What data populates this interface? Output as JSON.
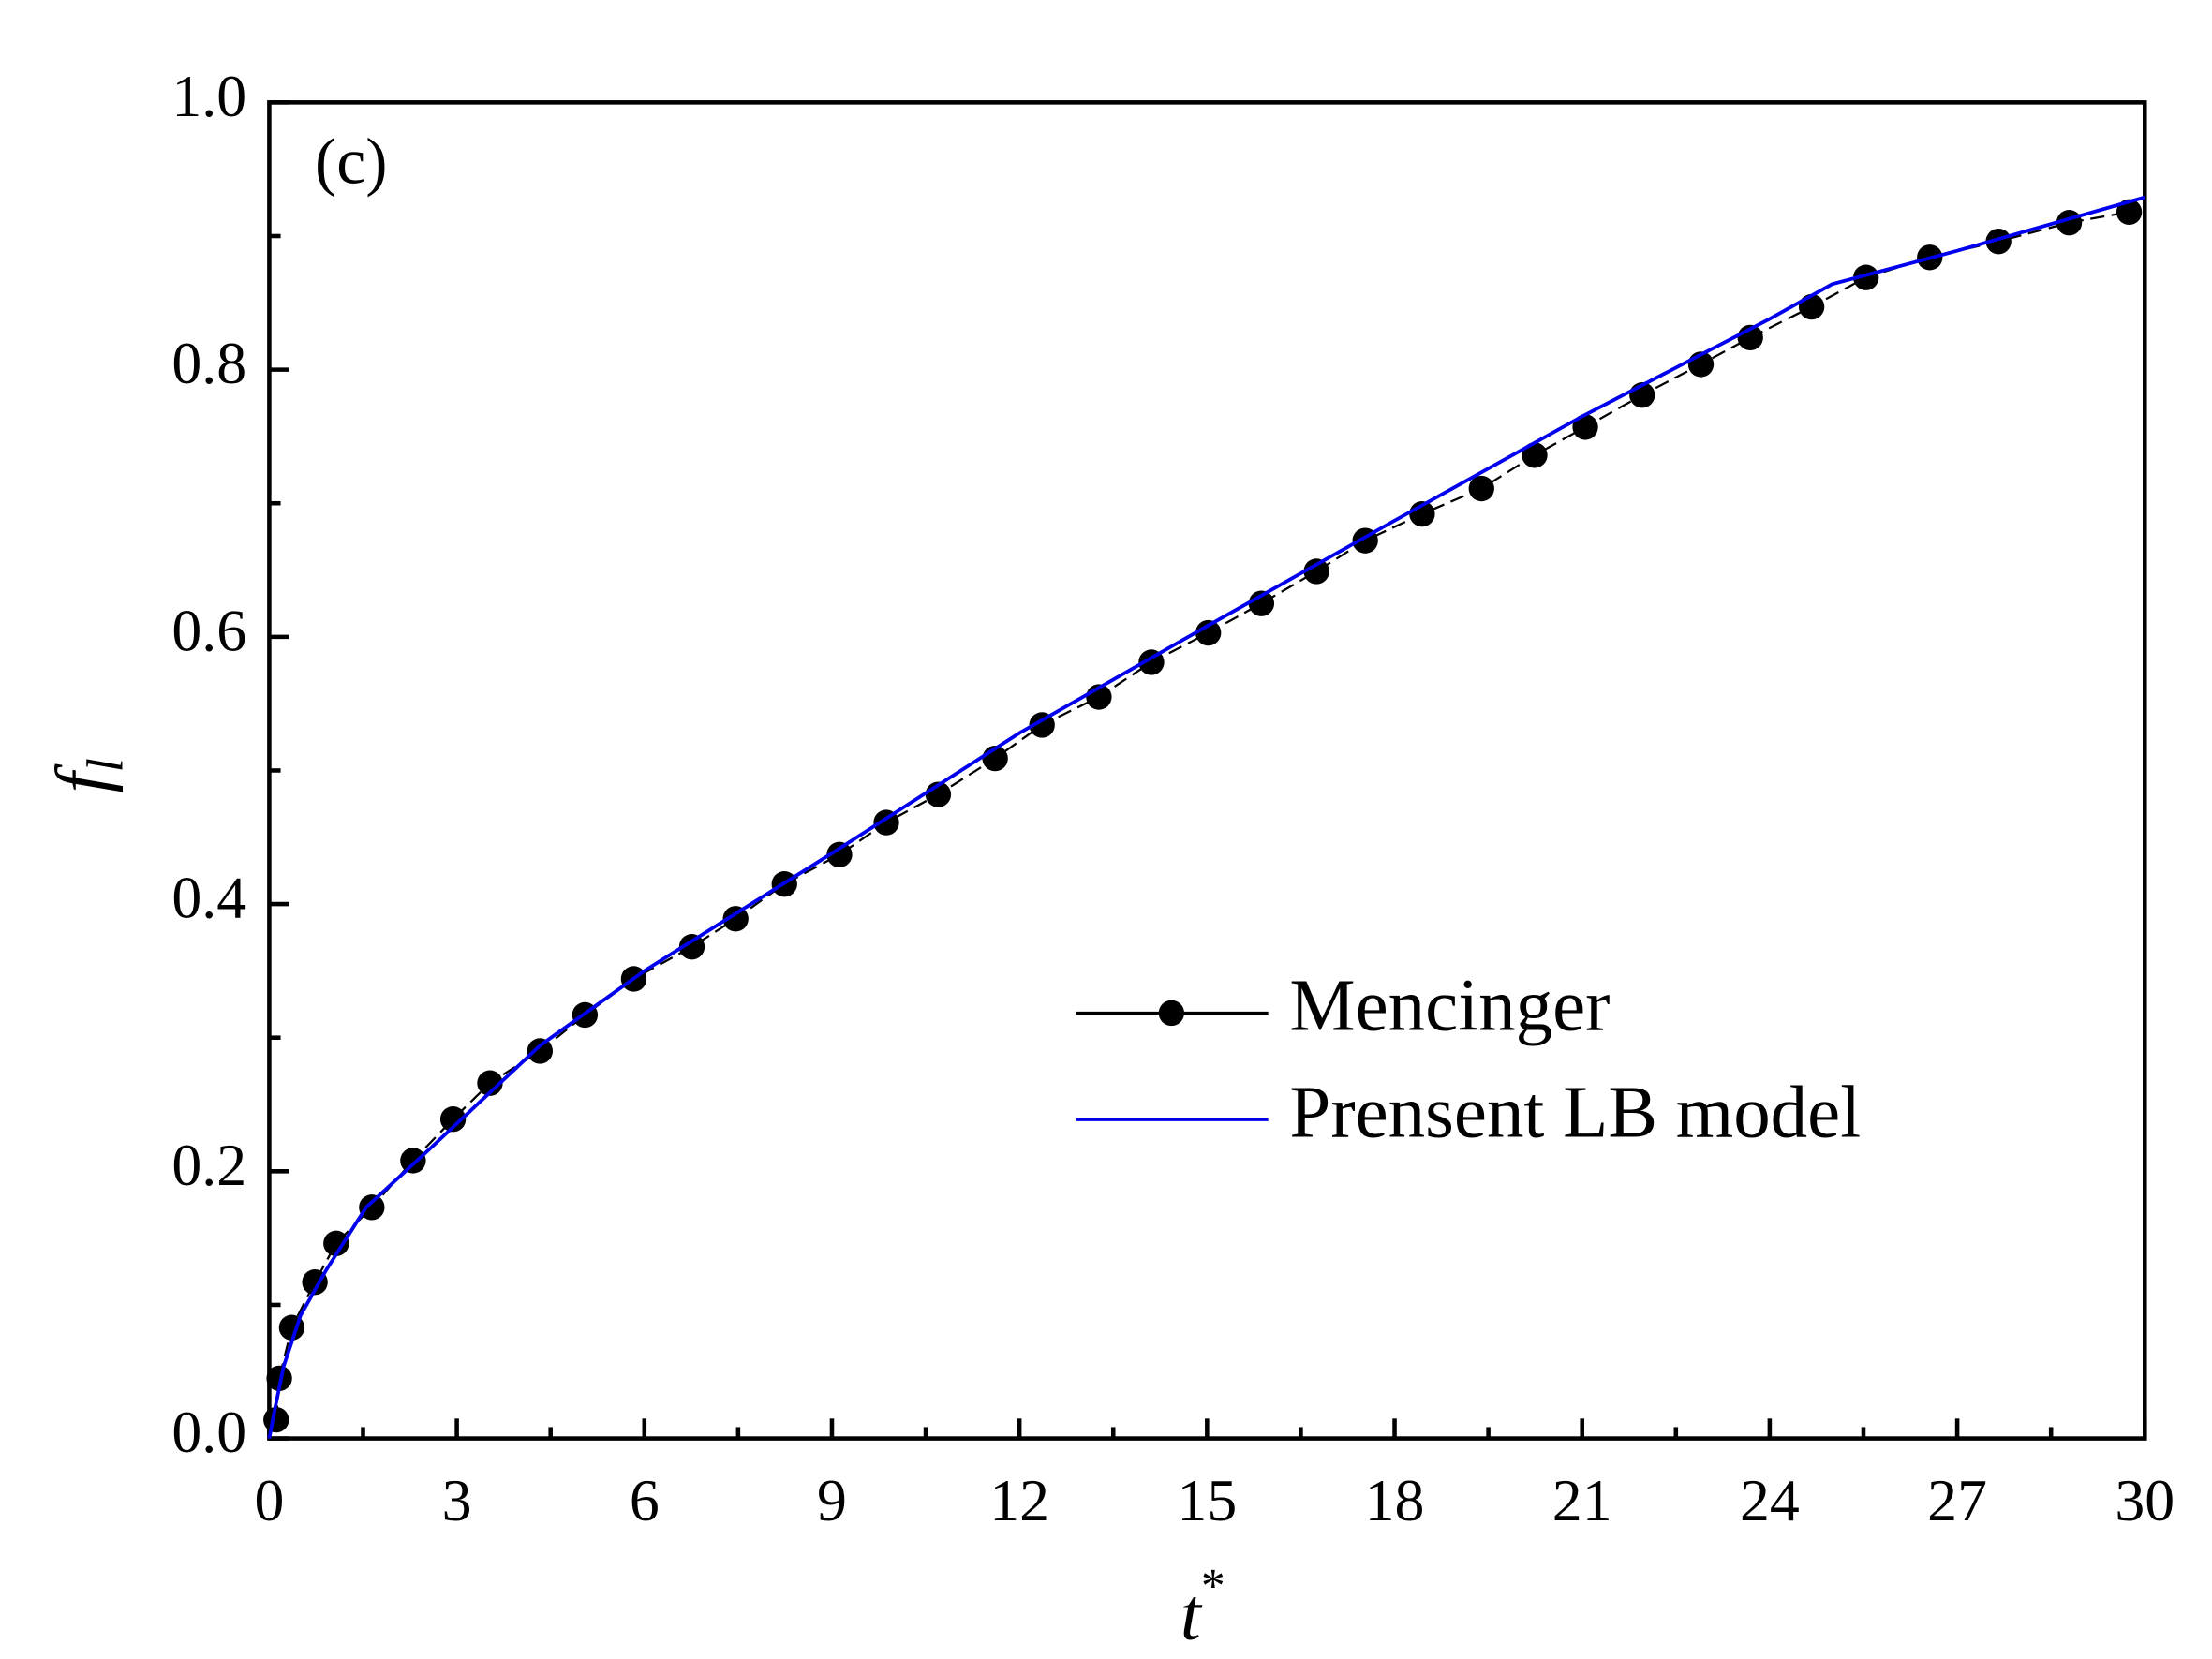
{
  "chart_data": {
    "type": "line",
    "annotation": "(c)",
    "x_label": "t",
    "x_label_superscript": "*",
    "y_label": "f",
    "y_label_subscript": "l",
    "xlim": [
      0,
      30
    ],
    "xticks": [
      0,
      3,
      6,
      9,
      12,
      15,
      18,
      21,
      24,
      27,
      30
    ],
    "ylim": [
      0,
      1.0
    ],
    "yticks": [
      {
        "value": 0,
        "label": "0.0"
      },
      0.2,
      0.4,
      0.6,
      0.8,
      {
        "value": 1.0,
        "label": "1.0"
      }
    ],
    "legend": "lower right",
    "series": [
      {
        "name": "Mencinger",
        "color": "#000000",
        "style": "dashed",
        "marker": "circle",
        "x": [
          0.11,
          0.16,
          0.36,
          0.73,
          1.07,
          1.64,
          2.3,
          2.94,
          3.53,
          4.33,
          5.05,
          5.83,
          6.76,
          7.46,
          8.24,
          9.12,
          9.87,
          10.7,
          11.61,
          12.36,
          13.27,
          14.11,
          15.02,
          15.87,
          16.75,
          17.53,
          18.44,
          19.39,
          20.24,
          21.05,
          21.96,
          22.9,
          23.69,
          24.67,
          25.54,
          26.56,
          27.66,
          28.79,
          29.75
        ],
        "values": [
          0.014,
          0.045,
          0.083,
          0.117,
          0.146,
          0.173,
          0.208,
          0.239,
          0.266,
          0.29,
          0.317,
          0.344,
          0.368,
          0.389,
          0.415,
          0.437,
          0.461,
          0.482,
          0.509,
          0.534,
          0.555,
          0.581,
          0.603,
          0.625,
          0.649,
          0.672,
          0.692,
          0.711,
          0.736,
          0.757,
          0.781,
          0.804,
          0.824,
          0.847,
          0.869,
          0.884,
          0.896,
          0.91,
          0.918
        ]
      },
      {
        "name": "Prensent LB model",
        "color": "#0000ee",
        "style": "solid",
        "x": [
          0,
          0.09,
          0.23,
          0.5,
          0.91,
          1.55,
          2.55,
          4.33,
          6.0,
          9.0,
          12.0,
          15.0,
          18.0,
          21.0,
          24.0,
          25.0,
          27.0,
          30.0
        ],
        "values": [
          0,
          0.022,
          0.054,
          0.092,
          0.126,
          0.173,
          0.216,
          0.294,
          0.35,
          0.438,
          0.528,
          0.608,
          0.687,
          0.765,
          0.838,
          0.864,
          0.889,
          0.929
        ]
      }
    ]
  }
}
